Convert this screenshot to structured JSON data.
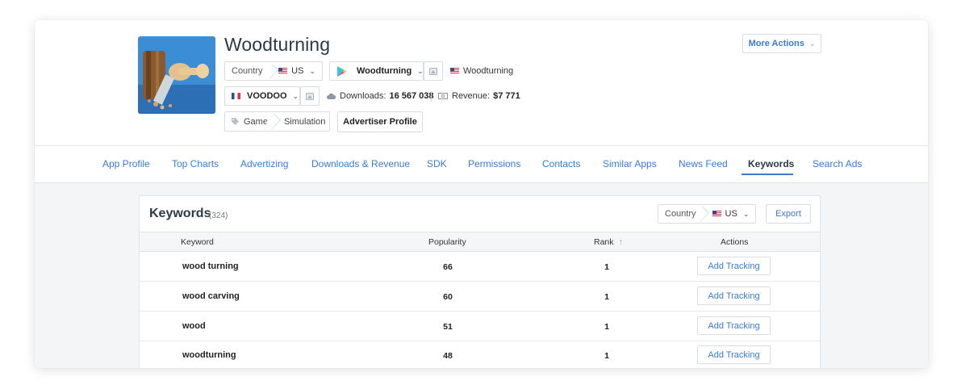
{
  "app": {
    "title": "Woodturning",
    "icon": "woodturning-app-icon",
    "country_label": "Country",
    "country_value": "US",
    "store_app_name": "Woodturning",
    "store_icon": "google-play-icon",
    "linked_app_name": "Woodturning",
    "publisher": "VOODOO",
    "downloads_label": "Downloads:",
    "downloads_value": "16 567 038",
    "revenue_label": "Revenue:",
    "revenue_value": "$7 771",
    "category": "Game",
    "subcategory": "Simulation",
    "advertiser_profile_label": "Advertiser Profile",
    "more_actions_label": "More Actions"
  },
  "nav": {
    "items": [
      {
        "label": "App Profile"
      },
      {
        "label": "Top Charts"
      },
      {
        "label": "Advertizing"
      },
      {
        "label": "Downloads & Revenue"
      },
      {
        "label": "SDK"
      },
      {
        "label": "Permissions"
      },
      {
        "label": "Contacts"
      },
      {
        "label": "Similar Apps"
      },
      {
        "label": "News Feed"
      },
      {
        "label": "Keywords"
      },
      {
        "label": "Search Ads"
      }
    ],
    "active": "Keywords"
  },
  "keywords": {
    "title": "Keywords",
    "count": "(324)",
    "country_label": "Country",
    "country_value": "US",
    "export_label": "Export",
    "columns": {
      "keyword": "Keyword",
      "popularity": "Popularity",
      "rank": "Rank",
      "rank_sort_icon": "sort-up-arrow-icon",
      "actions": "Actions"
    },
    "rows": [
      {
        "keyword": "wood turning",
        "popularity": "66",
        "rank": "1",
        "action": "Add Tracking"
      },
      {
        "keyword": "wood carving",
        "popularity": "60",
        "rank": "1",
        "action": "Add Tracking"
      },
      {
        "keyword": "wood",
        "popularity": "51",
        "rank": "1",
        "action": "Add Tracking"
      },
      {
        "keyword": "woodturning",
        "popularity": "48",
        "rank": "1",
        "action": "Add Tracking"
      }
    ]
  },
  "colors": {
    "accent": "#3a7bd5",
    "title": "#2c3a47",
    "border": "#d7dde3",
    "content_background": "#f3f5f7"
  }
}
